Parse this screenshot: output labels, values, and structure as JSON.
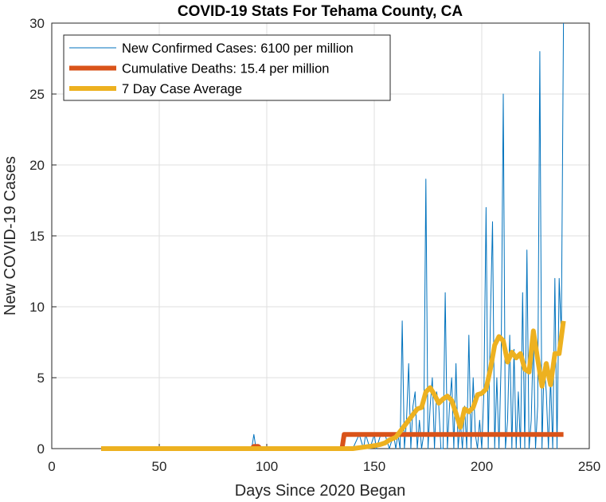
{
  "chart_data": {
    "type": "line",
    "title": "COVID-19 Stats For Tehama County, CA",
    "xlabel": "Days Since 2020 Began",
    "ylabel": "New COVID-19 Cases",
    "xlim": [
      0,
      250
    ],
    "ylim": [
      0,
      30
    ],
    "xticks": [
      0,
      50,
      100,
      150,
      200,
      250
    ],
    "yticks": [
      0,
      5,
      10,
      15,
      20,
      25,
      30
    ],
    "grid": true,
    "legend_position": "top-left",
    "series": [
      {
        "name": "New Confirmed Cases: 6100 per million",
        "color": "#0072BD",
        "x": [
          23,
          90,
          92,
          93,
          94,
          95,
          97,
          140,
          143,
          145,
          146,
          148,
          150,
          151,
          153,
          155,
          157,
          159,
          160,
          161,
          162,
          163,
          164,
          165,
          166,
          167,
          168,
          169,
          170,
          171,
          172,
          173,
          174,
          175,
          176,
          177,
          178,
          179,
          180,
          181,
          182,
          183,
          184,
          185,
          186,
          187,
          188,
          189,
          190,
          191,
          192,
          193,
          194,
          195,
          196,
          197,
          198,
          199,
          200,
          201,
          202,
          203,
          204,
          205,
          206,
          207,
          208,
          209,
          210,
          211,
          212,
          213,
          214,
          215,
          216,
          217,
          218,
          219,
          220,
          221,
          222,
          223,
          224,
          225,
          226,
          227,
          228,
          229,
          230,
          231,
          232,
          233,
          234,
          235,
          236,
          237,
          238
        ],
        "y": [
          0,
          0,
          0,
          0,
          1,
          0,
          0,
          0,
          1,
          0,
          1,
          0,
          1,
          0,
          1,
          1,
          0,
          1,
          0,
          1,
          0,
          9,
          0,
          2,
          6,
          0,
          3,
          4,
          0,
          2,
          0,
          1,
          19,
          0,
          3,
          5,
          0,
          4,
          3,
          0,
          0,
          11,
          0,
          3,
          5,
          0,
          6,
          0,
          2,
          0,
          3,
          0,
          8,
          0,
          5,
          1,
          0,
          2,
          0,
          4,
          17,
          0,
          9,
          16,
          0,
          5,
          0,
          6,
          25,
          0,
          2,
          8,
          0,
          7,
          0,
          4,
          0,
          11,
          0,
          14,
          0,
          2,
          8,
          0,
          3,
          28,
          0,
          6,
          4,
          0,
          5,
          0,
          12,
          0,
          12,
          8,
          30
        ]
      },
      {
        "name": "Cumulative Deaths: 15.4 per million",
        "color": "#D95319",
        "x": [
          23,
          93,
          94,
          96,
          97,
          98,
          99,
          135,
          136,
          238
        ],
        "y": [
          0,
          0,
          0.15,
          0.15,
          0,
          0,
          0,
          0,
          1,
          1
        ]
      },
      {
        "name": "7 Day Case Average",
        "color": "#EDB120",
        "x": [
          23,
          90,
          140,
          145,
          150,
          153,
          155,
          157,
          160,
          162,
          164,
          166,
          168,
          170,
          172,
          174,
          176,
          178,
          180,
          182,
          184,
          186,
          188,
          190,
          192,
          194,
          196,
          198,
          200,
          202,
          204,
          206,
          208,
          210,
          212,
          214,
          216,
          218,
          220,
          222,
          224,
          226,
          228,
          230,
          232,
          234,
          236,
          238
        ],
        "y": [
          0,
          0,
          0,
          0.1,
          0.2,
          0.3,
          0.4,
          0.6,
          0.8,
          1.2,
          1.6,
          2.0,
          2.4,
          2.8,
          2.9,
          4.0,
          4.3,
          3.8,
          3.2,
          3.5,
          3.7,
          3.4,
          2.5,
          1.5,
          2.8,
          2.6,
          2.9,
          3.8,
          3.9,
          4.2,
          5.6,
          7.3,
          7.9,
          7.6,
          6.1,
          6.8,
          6.4,
          6.7,
          5.6,
          5.4,
          8.3,
          6.3,
          4.4,
          6.0,
          4.5,
          6.7,
          6.7,
          9.0
        ]
      }
    ]
  }
}
